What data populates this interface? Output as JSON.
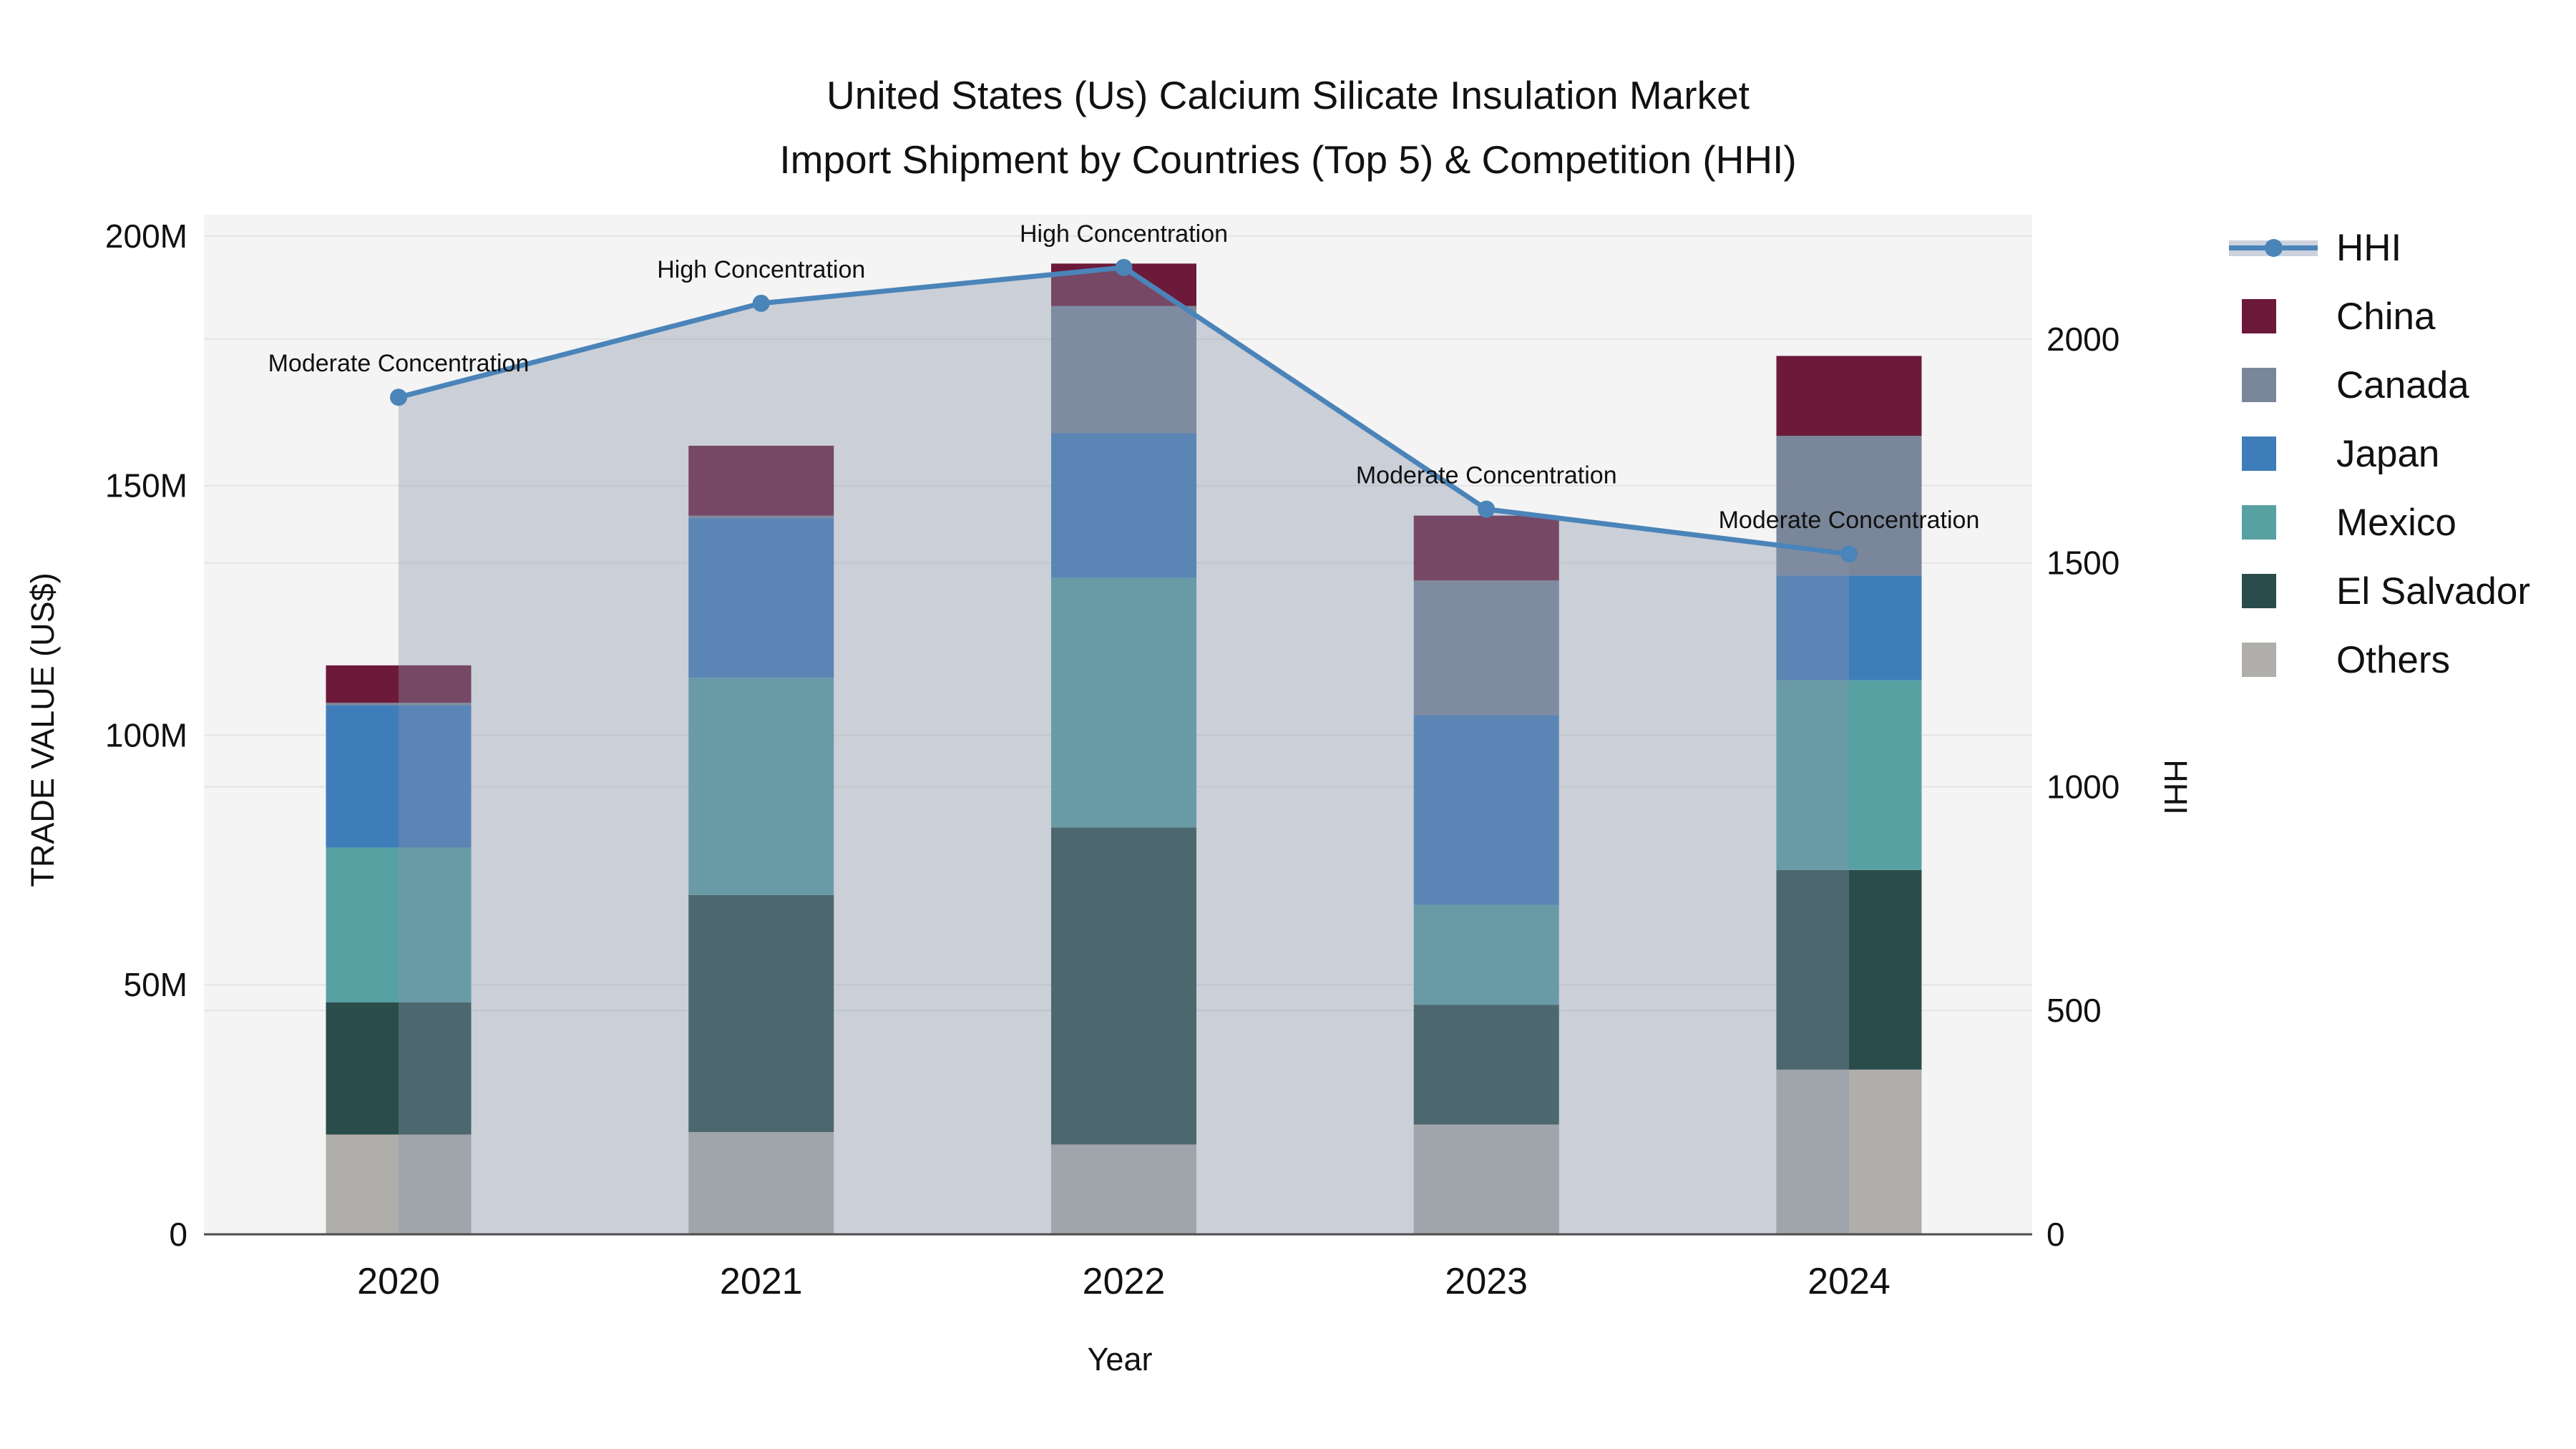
{
  "title": {
    "line1": "United States (Us) Calcium Silicate Insulation Market",
    "line2": "Import Shipment by Countries (Top 5) & Competition (HHI)"
  },
  "axes": {
    "left": {
      "title": "TRADE VALUE (US$)",
      "tick_labels": [
        "0",
        "50M",
        "100M",
        "150M",
        "200M"
      ],
      "tick_values": [
        0,
        50,
        100,
        150,
        200
      ],
      "max": 204.3
    },
    "right": {
      "title": "HHI",
      "tick_labels": [
        "0",
        "500",
        "1000",
        "1500",
        "2000"
      ],
      "tick_values": [
        0,
        500,
        1000,
        1500,
        2000
      ],
      "max": 2278
    },
    "x": {
      "title": "Year"
    }
  },
  "colors": {
    "plot_background": "#f4f4f4",
    "gridline": "#e4e4e4",
    "axis_line": "#4c4c4c",
    "annotation_text": "#111111",
    "tick_text": "#111111",
    "hhi_line": "#4a84b9",
    "hhi_area": "rgba(134,148,170,0.38)"
  },
  "legend": [
    "HHI",
    "China",
    "Canada",
    "Japan",
    "Mexico",
    "El Salvador",
    "Others"
  ],
  "chart_data": {
    "type": "combo: stacked-bar + line-with-area (dual axis)",
    "title": "United States (Us) Calcium Silicate Insulation Market — Import Shipment by Countries (Top 5) & Competition (HHI)",
    "xlabel": "Year",
    "ylabel_left": "TRADE VALUE (US$)",
    "ylabel_right": "HHI",
    "categories": [
      "2020",
      "2021",
      "2022",
      "2023",
      "2024"
    ],
    "ylim_left_millions": [
      0,
      204.3
    ],
    "ylim_right_hhi": [
      0,
      2278
    ],
    "grid": true,
    "legend_position": "right",
    "stack_bottom_to_top": [
      "Others",
      "El Salvador",
      "Mexico",
      "Japan",
      "Canada",
      "China"
    ],
    "series": [
      {
        "name": "China",
        "color": "#6d1a3a",
        "values_millions": [
          7.5,
          14,
          8.5,
          13,
          16
        ]
      },
      {
        "name": "Canada",
        "color": "#7a8699",
        "values_millions": [
          0.5,
          0.5,
          25.5,
          27,
          28
        ]
      },
      {
        "name": "Japan",
        "color": "#3f7dba",
        "values_millions": [
          28.5,
          32,
          29,
          38,
          21
        ]
      },
      {
        "name": "Mexico",
        "color": "#58a1a3",
        "values_millions": [
          31,
          43.5,
          50,
          20,
          38
        ]
      },
      {
        "name": "El Salvador",
        "color": "#2a4d4b",
        "values_millions": [
          26.5,
          47.5,
          63.5,
          24,
          40
        ]
      },
      {
        "name": "Others",
        "color": "#b0aeab",
        "values_millions": [
          20,
          20.5,
          18,
          22,
          33
        ]
      }
    ],
    "bar_totals_millions": [
      114,
      158,
      194.5,
      144,
      176
    ],
    "hhi_series": {
      "name": "HHI",
      "color": "#4a84b9",
      "values": [
        1870,
        2080,
        2160,
        1620,
        1520
      ]
    },
    "annotations": [
      {
        "year": "2020",
        "text": "Moderate Concentration"
      },
      {
        "year": "2021",
        "text": "High Concentration"
      },
      {
        "year": "2022",
        "text": "High Concentration"
      },
      {
        "year": "2023",
        "text": "Moderate Concentration"
      },
      {
        "year": "2024",
        "text": "Moderate Concentration"
      }
    ]
  }
}
